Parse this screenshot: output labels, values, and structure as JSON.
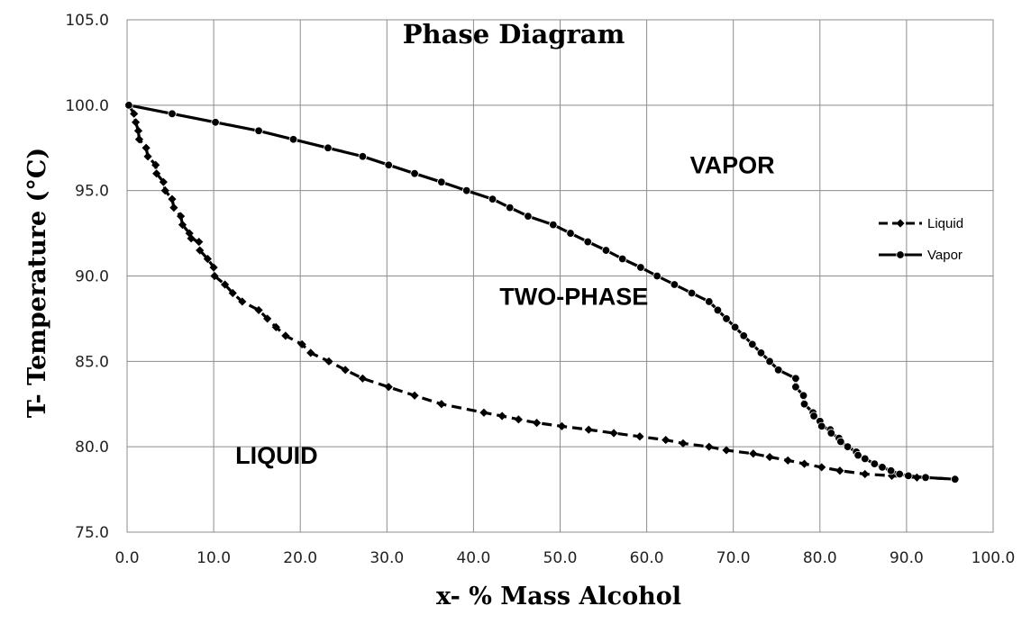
{
  "chart_data": {
    "type": "line",
    "title": "Phase Diagram",
    "xlabel": "x- % Mass Alcohol",
    "ylabel": "T- Temperature (°C)",
    "xlim": [
      0,
      100
    ],
    "ylim": [
      75,
      105
    ],
    "x_ticks": [
      "0.0",
      "10.0",
      "20.0",
      "30.0",
      "40.0",
      "50.0",
      "60.0",
      "70.0",
      "80.0",
      "90.0",
      "100.0"
    ],
    "y_ticks": [
      "75.0",
      "80.0",
      "85.0",
      "90.0",
      "95.0",
      "100.0",
      "105.0"
    ],
    "grid": true,
    "legend_position": "right",
    "annotations": [
      {
        "text": "VAPOR",
        "x": 65.0,
        "y": 96.0
      },
      {
        "text": "TWO-PHASE",
        "x": 43.0,
        "y": 88.3
      },
      {
        "text": "LIQUID",
        "x": 12.5,
        "y": 79.0
      }
    ],
    "series": [
      {
        "name": "Liquid",
        "marker": "diamond",
        "style": "dashed",
        "color": "#000000",
        "points": [
          [
            0.2,
            100.0
          ],
          [
            0.8,
            99.5
          ],
          [
            1.0,
            99.0
          ],
          [
            1.3,
            98.5
          ],
          [
            1.4,
            98.0
          ],
          [
            2.2,
            97.5
          ],
          [
            2.4,
            97.0
          ],
          [
            3.3,
            96.5
          ],
          [
            3.4,
            96.0
          ],
          [
            4.2,
            95.5
          ],
          [
            4.4,
            95.0
          ],
          [
            5.2,
            94.5
          ],
          [
            5.4,
            94.0
          ],
          [
            6.2,
            93.5
          ],
          [
            6.4,
            93.0
          ],
          [
            7.2,
            92.5
          ],
          [
            7.4,
            92.2
          ],
          [
            8.3,
            92.0
          ],
          [
            8.4,
            91.5
          ],
          [
            9.3,
            91.0
          ],
          [
            10.0,
            90.5
          ],
          [
            10.1,
            90.0
          ],
          [
            11.3,
            89.5
          ],
          [
            12.2,
            89.0
          ],
          [
            13.3,
            88.5
          ],
          [
            15.2,
            88.0
          ],
          [
            16.2,
            87.5
          ],
          [
            17.2,
            87.0
          ],
          [
            18.3,
            86.5
          ],
          [
            20.2,
            86.0
          ],
          [
            21.2,
            85.5
          ],
          [
            23.3,
            85.0
          ],
          [
            25.2,
            84.5
          ],
          [
            27.2,
            84.0
          ],
          [
            30.2,
            83.5
          ],
          [
            33.2,
            83.0
          ],
          [
            36.3,
            82.5
          ],
          [
            41.2,
            82.0
          ],
          [
            43.3,
            81.8
          ],
          [
            45.2,
            81.6
          ],
          [
            47.3,
            81.4
          ],
          [
            50.2,
            81.2
          ],
          [
            53.3,
            81.0
          ],
          [
            56.2,
            80.8
          ],
          [
            59.2,
            80.6
          ],
          [
            62.2,
            80.4
          ],
          [
            64.2,
            80.2
          ],
          [
            67.2,
            80.0
          ],
          [
            69.2,
            79.8
          ],
          [
            72.3,
            79.6
          ],
          [
            74.2,
            79.4
          ],
          [
            76.3,
            79.2
          ],
          [
            78.2,
            79.0
          ],
          [
            80.2,
            78.8
          ],
          [
            82.3,
            78.6
          ],
          [
            85.2,
            78.4
          ],
          [
            88.3,
            78.3
          ],
          [
            91.2,
            78.2
          ],
          [
            92.2,
            78.2
          ],
          [
            95.6,
            78.1
          ]
        ]
      },
      {
        "name": "Vapor",
        "marker": "circle",
        "style": "solid",
        "color": "#000000",
        "points": [
          [
            0.2,
            100.0
          ],
          [
            5.2,
            99.5
          ],
          [
            10.2,
            99.0
          ],
          [
            15.2,
            98.5
          ],
          [
            19.2,
            98.0
          ],
          [
            23.2,
            97.5
          ],
          [
            27.2,
            97.0
          ],
          [
            30.2,
            96.5
          ],
          [
            33.2,
            96.0
          ],
          [
            36.3,
            95.5
          ],
          [
            39.2,
            95.0
          ],
          [
            42.2,
            94.5
          ],
          [
            44.2,
            94.0
          ],
          [
            46.3,
            93.5
          ],
          [
            49.2,
            93.0
          ],
          [
            51.2,
            92.5
          ],
          [
            53.2,
            92.0
          ],
          [
            55.3,
            91.5
          ],
          [
            57.2,
            91.0
          ],
          [
            59.3,
            90.5
          ],
          [
            61.2,
            90.0
          ],
          [
            63.2,
            89.5
          ],
          [
            65.2,
            89.0
          ],
          [
            67.2,
            88.5
          ],
          [
            68.2,
            88.0
          ],
          [
            69.2,
            87.5
          ],
          [
            70.2,
            87.0
          ],
          [
            71.2,
            86.5
          ],
          [
            72.2,
            86.0
          ],
          [
            73.2,
            85.5
          ],
          [
            74.2,
            85.0
          ],
          [
            75.2,
            84.5
          ],
          [
            77.2,
            84.0
          ],
          [
            77.2,
            83.5
          ],
          [
            78.1,
            83.0
          ],
          [
            78.2,
            82.5
          ],
          [
            79.2,
            82.0
          ],
          [
            79.3,
            81.8
          ],
          [
            80.0,
            81.5
          ],
          [
            80.2,
            81.2
          ],
          [
            81.2,
            81.0
          ],
          [
            81.3,
            80.8
          ],
          [
            82.2,
            80.5
          ],
          [
            82.4,
            80.3
          ],
          [
            83.2,
            80.0
          ],
          [
            84.2,
            79.7
          ],
          [
            84.4,
            79.5
          ],
          [
            85.2,
            79.3
          ],
          [
            86.3,
            79.0
          ],
          [
            87.2,
            78.8
          ],
          [
            88.2,
            78.6
          ],
          [
            89.2,
            78.4
          ],
          [
            90.2,
            78.3
          ],
          [
            92.2,
            78.2
          ],
          [
            95.6,
            78.1
          ]
        ]
      }
    ]
  }
}
